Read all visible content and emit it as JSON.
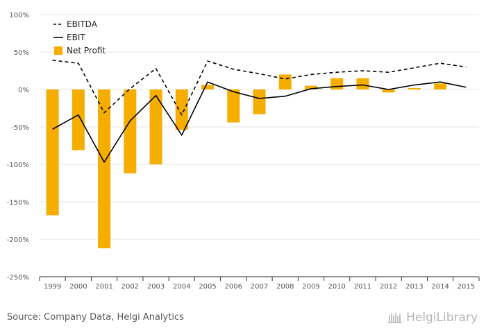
{
  "chart_data": {
    "type": "bar",
    "categories": [
      "1999",
      "2000",
      "2001",
      "2002",
      "2003",
      "2004",
      "2005",
      "2006",
      "2007",
      "2008",
      "2009",
      "2010",
      "2011",
      "2012",
      "2013",
      "2014",
      "2015"
    ],
    "ylim": [
      -250,
      100
    ],
    "yticks": [
      100,
      50,
      0,
      -50,
      -100,
      -150,
      -200,
      -250
    ],
    "ytick_suffix": "%",
    "grid": true,
    "legend_position": "top-left",
    "series": [
      {
        "name": "EBITDA",
        "kind": "line",
        "style": "dashed",
        "color": "#000000",
        "values": [
          39,
          35,
          -31,
          1,
          28,
          -34,
          38,
          27,
          21,
          14,
          20,
          23,
          25,
          23,
          29,
          35,
          30
        ]
      },
      {
        "name": "EBIT",
        "kind": "line",
        "style": "solid",
        "color": "#000000",
        "values": [
          -53,
          -34,
          -97,
          -42,
          -8,
          -61,
          10,
          -3,
          -12,
          -9,
          1,
          4,
          6,
          0,
          6,
          10,
          3
        ]
      },
      {
        "name": "Net Profit",
        "kind": "bar",
        "color": "#f5ad00",
        "values": [
          -168,
          -81,
          -212,
          -112,
          -100,
          -54,
          6,
          -44,
          -33,
          20,
          5,
          15,
          15,
          -4,
          2,
          8,
          0
        ]
      }
    ]
  },
  "footer": {
    "source": "Source: Company Data, Helgi Analytics",
    "brand": "HelgiLibrary"
  },
  "colors": {
    "bar": "#f5ad00",
    "grid": "#e6e6e6",
    "axis": "#333333"
  }
}
